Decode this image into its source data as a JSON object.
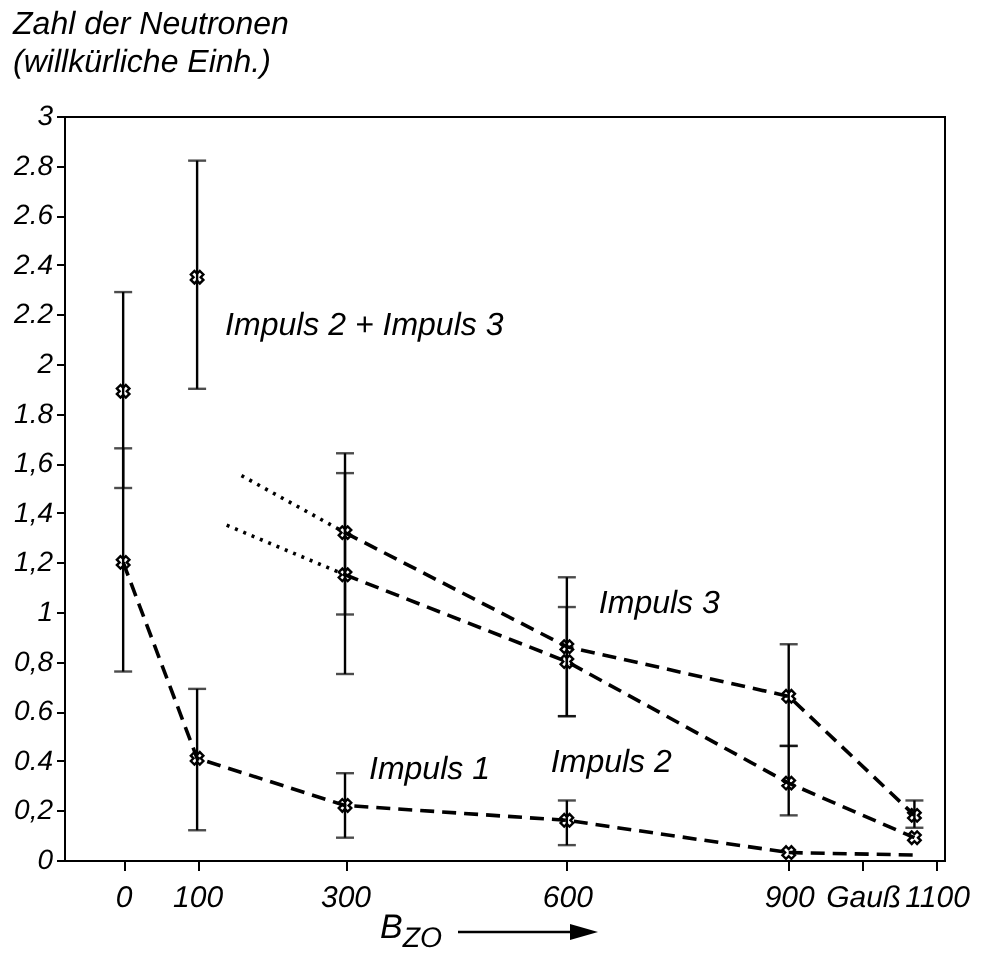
{
  "chart_data": {
    "type": "line",
    "ylabel": "Zahl der Neutronen\n(willkürliche Einh.)",
    "xlabel": "B$_{ZO}$",
    "xlim": [
      -80,
      1110
    ],
    "xticks": [
      0,
      100,
      300,
      600,
      900,
      {
        "value": 1000,
        "label": "Gauß"
      },
      1100
    ],
    "ylim": [
      0,
      3
    ],
    "yticks": [
      0,
      {
        "value": 0.2,
        "label": "0,2"
      },
      0.4,
      0.6,
      {
        "value": 0.8,
        "label": "0,8"
      },
      1,
      {
        "value": 1.2,
        "label": "1,2"
      },
      {
        "value": 1.4,
        "label": "1,4"
      },
      {
        "value": 1.6,
        "label": "1,6"
      },
      1.8,
      2,
      2.2,
      2.4,
      2.6,
      2.8,
      3
    ],
    "grid": false,
    "marker": "cross",
    "line_style": "dashed",
    "series": [
      {
        "name": "Impuls 2 + Impuls 3",
        "type": "scatter",
        "color": "#000000",
        "x": [
          0,
          100
        ],
        "values": [
          1.89,
          2.35
        ],
        "errors": [
          [
            1.5,
            2.29
          ],
          [
            1.9,
            2.82
          ]
        ]
      },
      {
        "name": "Impuls 1",
        "type": "line",
        "color": "#000000",
        "x": [
          0,
          100,
          300,
          600,
          900
        ],
        "values": [
          1.2,
          0.41,
          0.22,
          0.16,
          0.03
        ],
        "errors": [
          [
            0.76,
            1.66
          ],
          [
            0.12,
            0.69
          ],
          [
            0.09,
            0.35
          ],
          [
            0.06,
            0.24
          ],
          null
        ]
      },
      {
        "name": "Impuls 2",
        "type": "line",
        "color": "#000000",
        "x": [
          300,
          600,
          900,
          1070
        ],
        "values": [
          1.15,
          0.8,
          0.31,
          0.09
        ],
        "errors": [
          [
            0.75,
            1.56
          ],
          [
            0.58,
            1.02
          ],
          [
            0.18,
            0.46
          ],
          null
        ]
      },
      {
        "name": "Impuls 3",
        "type": "line",
        "color": "#000000",
        "x": [
          300,
          600,
          900,
          1070
        ],
        "values": [
          1.32,
          0.86,
          0.66,
          0.18
        ],
        "errors": [
          [
            0.99,
            1.64
          ],
          [
            0.58,
            1.14
          ],
          [
            0.46,
            0.87
          ],
          [
            0.13,
            0.24
          ]
        ]
      },
      {
        "type": "line",
        "color": "#000000",
        "x": [
          900,
          1070
        ],
        "values": [
          0.03,
          0.02
        ],
        "marker": "none"
      },
      {
        "type": "line",
        "color": "#000000",
        "x": [
          140,
          300
        ],
        "values": [
          1.35,
          1.15
        ],
        "marker": "none",
        "line_style": "dotted"
      },
      {
        "type": "line",
        "color": "#000000",
        "x": [
          160,
          300
        ],
        "values": [
          1.55,
          1.32
        ],
        "marker": "none",
        "line_style": "dotted"
      }
    ]
  }
}
